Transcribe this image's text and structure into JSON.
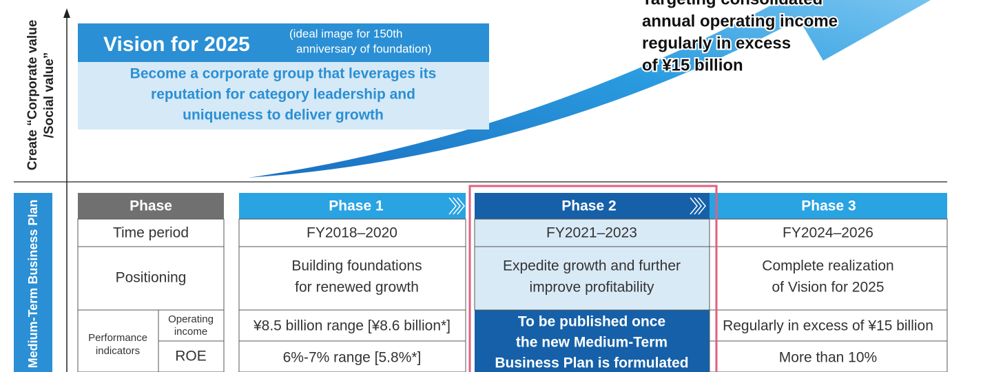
{
  "axis_label": [
    "Create “Corporate value",
    "/Social value”"
  ],
  "vision": {
    "title": "Vision for 2025",
    "note": [
      "(ideal image for 150th",
      "anniversary of foundation)"
    ],
    "text": [
      "Become a corporate group that leverages its",
      "reputation for category leadership and",
      "uniqueness to deliver growth"
    ]
  },
  "target": [
    "Targeting consolidated",
    "annual operating income",
    "regularly in excess",
    "of ¥15 billion"
  ],
  "side_label": "Medium-Term Business Plan",
  "table": {
    "header": [
      "Phase",
      "Phase 1",
      "Phase 2",
      "Phase 3"
    ],
    "time_period": {
      "label": "Time period",
      "values": [
        "FY2018–2020",
        "FY2021–2023",
        "FY2024–2026"
      ]
    },
    "positioning": {
      "label": "Positioning",
      "values": [
        [
          "Building foundations",
          "for renewed growth"
        ],
        [
          "Expedite growth and further",
          "improve profitability"
        ],
        [
          "Complete realization",
          "of Vision for 2025"
        ]
      ]
    },
    "indicators_label": [
      "Performance",
      "indicators"
    ],
    "operating_income": {
      "label": [
        "Operating",
        "income"
      ],
      "phase1": "¥8.5 billion range [¥8.6 billion*]",
      "phase3": "Regularly in excess of ¥15 billion"
    },
    "roe": {
      "label": "ROE",
      "phase1": "6%-7% range [5.8%*]",
      "phase3": "More than 10%"
    },
    "phase2_indicators": [
      "To be published once",
      "the new Medium-Term",
      "Business Plan is formulated"
    ]
  }
}
